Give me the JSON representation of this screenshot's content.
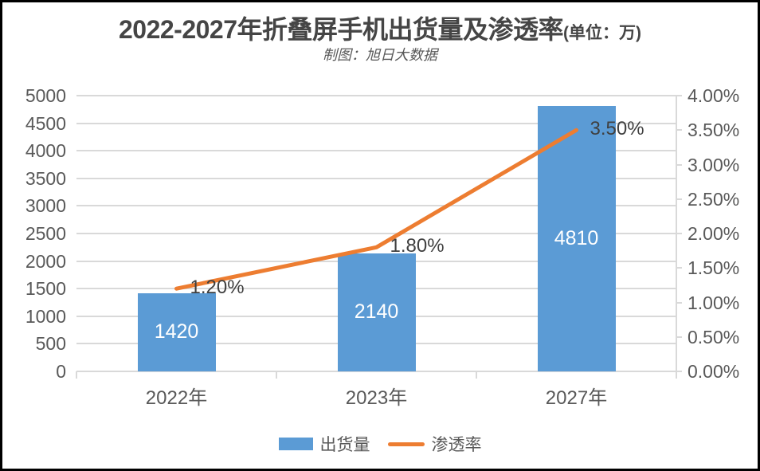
{
  "window": {
    "background": "#ffffff",
    "frame_border_color": "#000000"
  },
  "header": {
    "title": "2022-2027年折叠屏手机出货量及渗透率",
    "title_unit_suffix": "(单位：万)",
    "subtitle": "制图：旭日大数据",
    "title_color": "#454545",
    "subtitle_color": "#595959"
  },
  "chart_data": {
    "type": "combo",
    "title": "2022-2027年折叠屏手机出货量及渗透率(单位：万)",
    "subtitle": "制图：旭日大数据",
    "categories": [
      "2022年",
      "2023年",
      "2027年"
    ],
    "series": [
      {
        "name": "出货量",
        "chart_type": "bar",
        "axis": "primary",
        "color": "#5B9BD5",
        "values": [
          1420,
          2140,
          4810
        ],
        "data_labels": [
          "1420",
          "2140",
          "4810"
        ],
        "data_label_color": "#ffffff"
      },
      {
        "name": "渗透率",
        "chart_type": "line",
        "axis": "secondary",
        "color": "#ED7D31",
        "values_percent": [
          1.2,
          1.8,
          3.5
        ],
        "data_labels": [
          "1.20%",
          "1.80%",
          "3.50%"
        ],
        "data_label_color": "#404040"
      }
    ],
    "primary_axis": {
      "min": 0,
      "max": 5000,
      "step": 500,
      "tick_labels": [
        "5000",
        "4500",
        "4000",
        "3500",
        "3000",
        "2500",
        "2000",
        "1500",
        "1000",
        "500",
        "0"
      ]
    },
    "secondary_axis": {
      "min_percent": 0,
      "max_percent": 4,
      "step_percent": 0.5,
      "tick_labels": [
        "4.00%",
        "3.50%",
        "3.00%",
        "2.50%",
        "2.00%",
        "1.50%",
        "1.00%",
        "0.50%",
        "0.00%"
      ]
    },
    "grid": true,
    "gridline_color": "#D9D9D9",
    "axis_text_color": "#595959",
    "legend_position": "bottom",
    "legend": [
      {
        "label": "出货量",
        "swatch": "bar",
        "color": "#5B9BD5"
      },
      {
        "label": "渗透率",
        "swatch": "line",
        "color": "#ED7D31"
      }
    ]
  }
}
